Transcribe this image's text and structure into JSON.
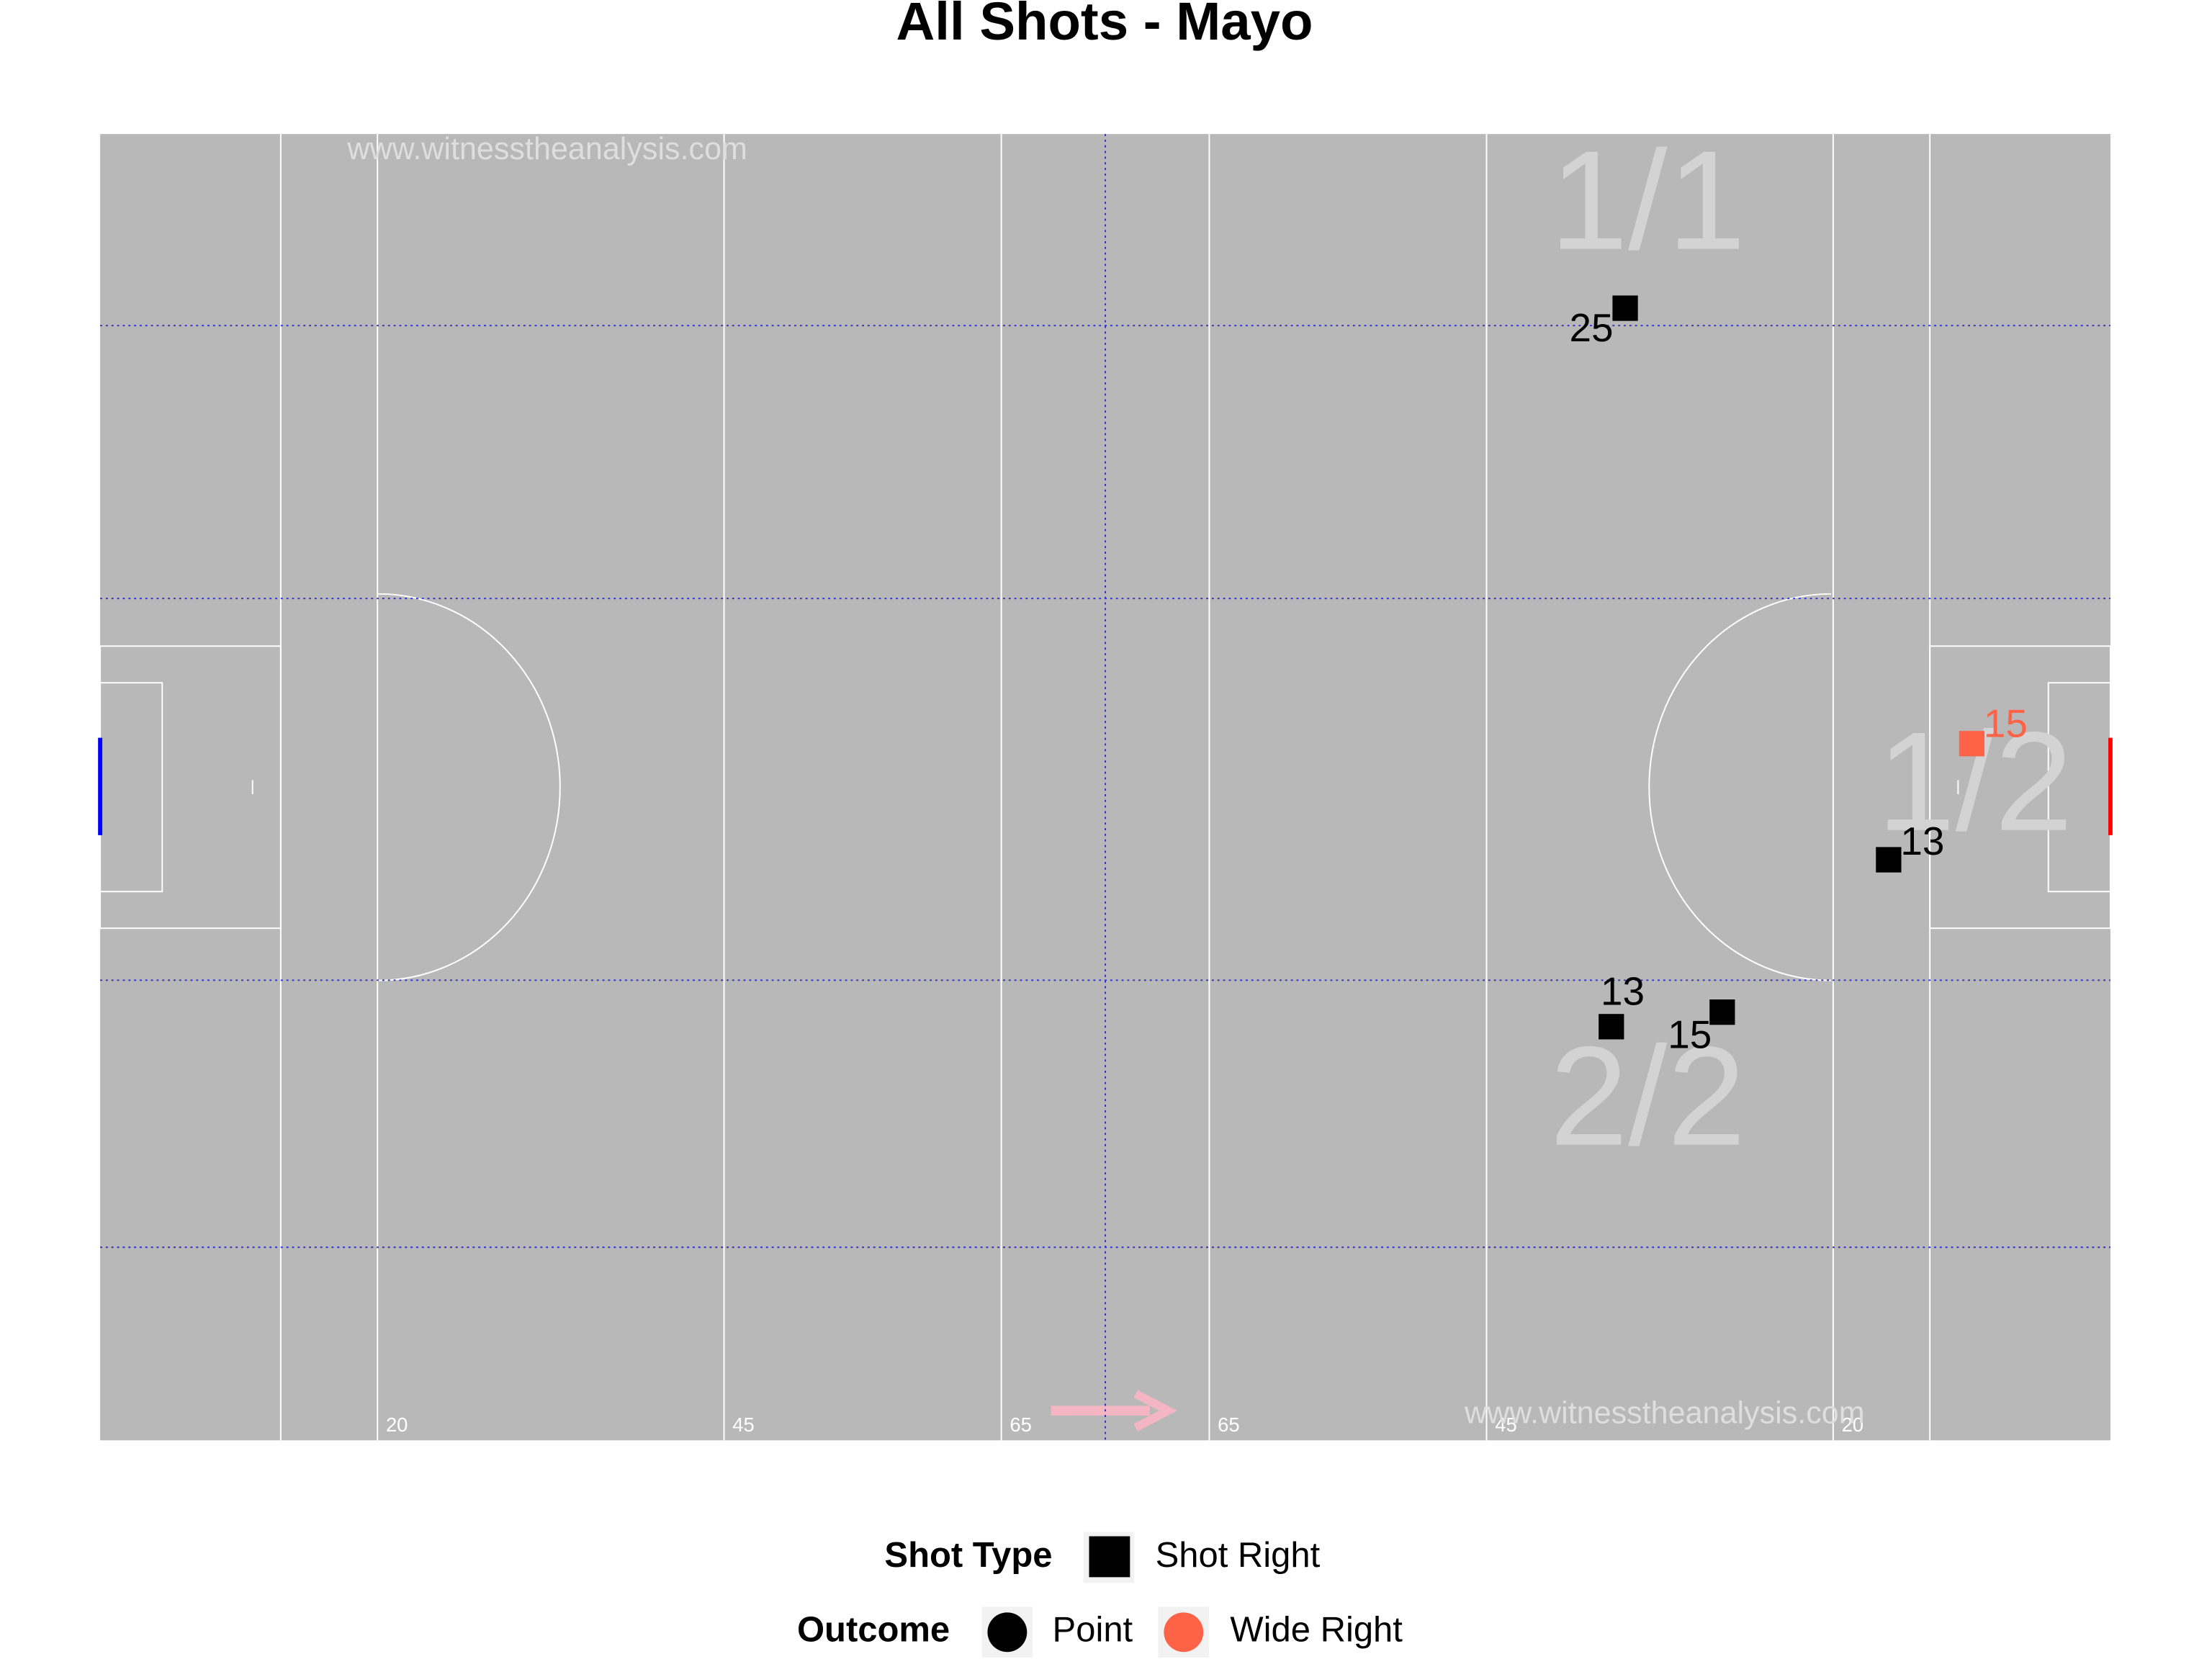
{
  "chart_data": {
    "type": "scatter",
    "title": "All Shots - Mayo",
    "watermarks": [
      "www.witnesstheanalysis.com",
      "www.witnesstheanalysis.com"
    ],
    "xlim": [
      0,
      145
    ],
    "ylim": [
      0,
      90
    ],
    "xticks": [
      20,
      45,
      65,
      {
        "value": 80,
        "label": "65"
      },
      {
        "value": 100,
        "label": "45"
      },
      {
        "value": 125,
        "label": "20"
      }
    ],
    "hlines": [
      76.8,
      58,
      31.7,
      13.3
    ],
    "vline": 72.5,
    "annotations": [
      "1/1",
      "1/2",
      "2/2"
    ],
    "series": [
      {
        "name": "Point",
        "color": "#000000",
        "x": [
          110,
          129,
          109,
          117
        ],
        "y": [
          78,
          40,
          28.5,
          29.5
        ],
        "labels": [
          "25",
          "13",
          "13",
          "15"
        ]
      },
      {
        "name": "Wide Right",
        "color": "#ff6347",
        "x": [
          135
        ],
        "y": [
          48
        ],
        "labels": [
          "15"
        ]
      }
    ],
    "shape_legend": {
      "title": "Shot Type",
      "items": [
        "Shot Right"
      ]
    },
    "color_legend_title": "Outcome"
  }
}
